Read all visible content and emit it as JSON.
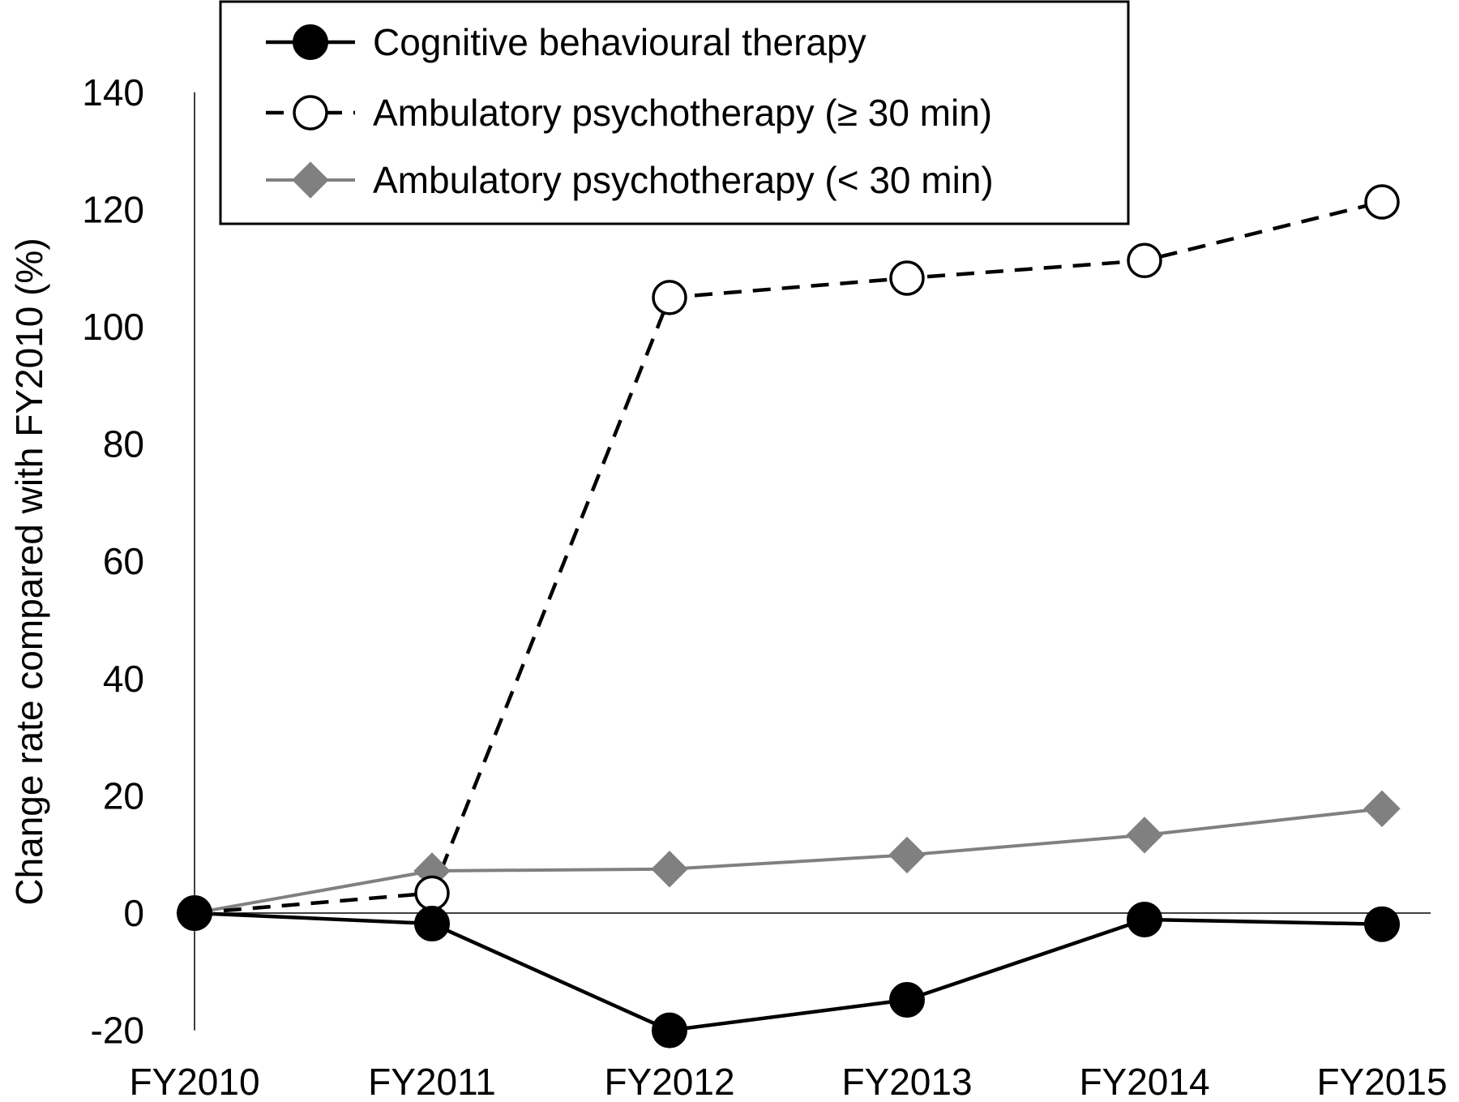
{
  "chart_data": {
    "type": "line",
    "ylabel": "Change rate compared with FY2010 (%)",
    "xlabel": "",
    "categories": [
      "FY2010",
      "FY2011",
      "FY2012",
      "FY2013",
      "FY2014",
      "FY2015"
    ],
    "ylim": [
      -20,
      140
    ],
    "yticks": [
      -20,
      0,
      20,
      40,
      60,
      80,
      100,
      120,
      140
    ],
    "ytick_labels": [
      "-20",
      "0",
      "20",
      "40",
      "60",
      "80",
      "100",
      "120",
      "140"
    ],
    "grid": false,
    "legend_position": "top",
    "series": [
      {
        "name": "Cognitive behavioural therapy",
        "values": [
          0,
          -1.8,
          -20,
          -14.8,
          -1.1,
          -1.9
        ],
        "color": "#000000",
        "line_style": "solid",
        "marker": "filled-circle"
      },
      {
        "name": "Ambulatory psychotherapy (≥ 30 min)",
        "values": [
          0,
          3.4,
          105,
          108.3,
          111.3,
          121.3
        ],
        "color": "#000000",
        "line_style": "dashed",
        "marker": "open-circle"
      },
      {
        "name": "Ambulatory psychotherapy (< 30 min)",
        "values": [
          0,
          7.2,
          7.5,
          9.9,
          13.3,
          17.8
        ],
        "color": "#808080",
        "line_style": "solid",
        "marker": "diamond"
      }
    ]
  }
}
